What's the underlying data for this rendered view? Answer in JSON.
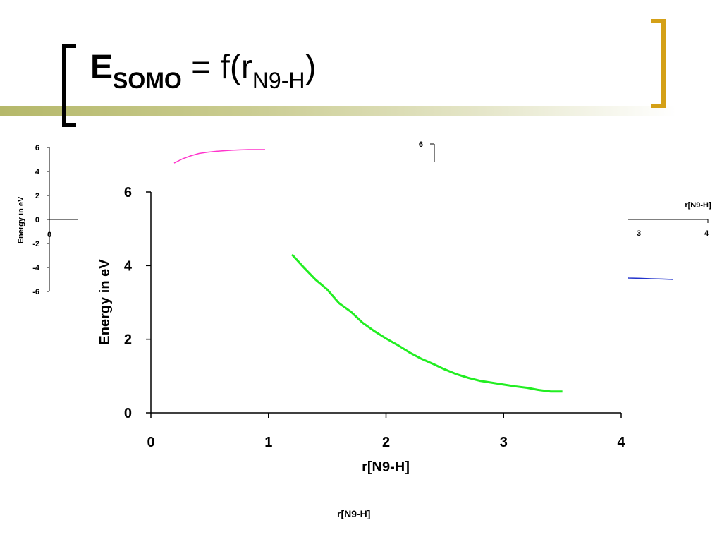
{
  "slide": {
    "title_main": "E",
    "title_sub": "SOMO",
    "title_eq": " = f(r",
    "title_rsub": "N9-H",
    "title_close": ")",
    "colors": {
      "bracket_left": "#000000",
      "bracket_right": "#d4a017",
      "bar": "#c9cb8f"
    },
    "bottom_xlabel": "r[N9-H]"
  },
  "chart_data": [
    {
      "id": "front",
      "type": "line",
      "xlabel": "r[N9-H]",
      "ylabel": "Energy in eV",
      "xlim": [
        0,
        4
      ],
      "ylim": [
        0,
        6
      ],
      "xticks": [
        0,
        1,
        2,
        3,
        4
      ],
      "yticks": [
        0,
        2,
        4,
        6
      ],
      "grid": false,
      "series": [
        {
          "color": "#22ee22",
          "x": [
            1.2,
            1.3,
            1.4,
            1.5,
            1.6,
            1.7,
            1.8,
            1.9,
            2.0,
            2.1,
            2.2,
            2.3,
            2.4,
            2.5,
            2.6,
            2.7,
            2.8,
            2.9,
            3.0,
            3.1,
            3.2,
            3.3,
            3.4,
            3.5
          ],
          "y": [
            4.3,
            3.95,
            3.62,
            3.35,
            2.98,
            2.75,
            2.45,
            2.22,
            2.02,
            1.84,
            1.64,
            1.47,
            1.33,
            1.18,
            1.05,
            0.95,
            0.87,
            0.82,
            0.77,
            0.72,
            0.68,
            0.62,
            0.58,
            0.58
          ]
        }
      ]
    },
    {
      "id": "back-left",
      "type": "line",
      "ylabel": "Energy in eV",
      "xlim": [
        0,
        4
      ],
      "ylim": [
        -6,
        6
      ],
      "yticks": [
        6,
        4,
        2,
        0,
        -2,
        -4,
        -6
      ],
      "xticks_visible": [
        0
      ],
      "grid": false,
      "series": [
        {
          "color": "#ff33cc",
          "x": [
            1.2,
            1.3,
            1.4,
            1.5,
            1.6,
            1.7,
            1.8,
            1.9,
            2.0,
            2.1,
            2.2,
            2.3
          ],
          "y": [
            4.7,
            5.05,
            5.3,
            5.5,
            5.6,
            5.68,
            5.73,
            5.77,
            5.8,
            5.82,
            5.82,
            5.82
          ]
        }
      ]
    },
    {
      "id": "back-right",
      "type": "line",
      "xlabel": "r[N9-H]",
      "ylim_top": 6,
      "xticks_visible": [
        "3",
        "4"
      ],
      "series": [
        {
          "color": "#2233cc",
          "x": [
            3.0,
            3.1,
            3.2,
            3.3,
            3.4,
            3.5,
            3.6
          ],
          "y": [
            -4.8,
            -4.85,
            -4.9,
            -4.92,
            -4.95,
            -4.97,
            -5.0
          ]
        }
      ]
    }
  ]
}
